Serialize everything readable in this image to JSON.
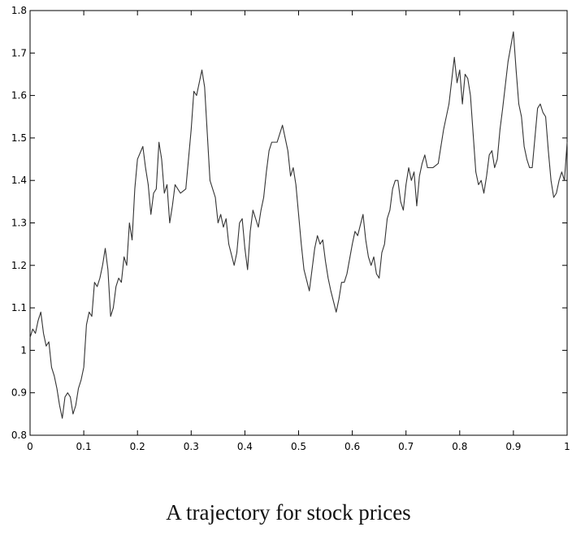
{
  "chart_data": {
    "type": "line",
    "caption": "A trajectory for stock prices",
    "x": [
      0,
      0.005,
      0.01,
      0.015,
      0.02,
      0.025,
      0.03,
      0.035,
      0.04,
      0.045,
      0.05,
      0.055,
      0.06,
      0.065,
      0.07,
      0.075,
      0.08,
      0.085,
      0.09,
      0.095,
      0.1,
      0.105,
      0.11,
      0.115,
      0.12,
      0.125,
      0.13,
      0.135,
      0.14,
      0.145,
      0.15,
      0.155,
      0.16,
      0.165,
      0.17,
      0.175,
      0.18,
      0.185,
      0.19,
      0.195,
      0.2,
      0.21,
      0.215,
      0.22,
      0.225,
      0.23,
      0.235,
      0.24,
      0.245,
      0.25,
      0.255,
      0.26,
      0.265,
      0.27,
      0.28,
      0.29,
      0.295,
      0.3,
      0.305,
      0.31,
      0.32,
      0.325,
      0.33,
      0.335,
      0.345,
      0.35,
      0.355,
      0.36,
      0.365,
      0.37,
      0.38,
      0.385,
      0.39,
      0.395,
      0.4,
      0.405,
      0.41,
      0.415,
      0.42,
      0.425,
      0.43,
      0.435,
      0.44,
      0.445,
      0.45,
      0.46,
      0.47,
      0.475,
      0.48,
      0.485,
      0.49,
      0.495,
      0.5,
      0.505,
      0.51,
      0.52,
      0.525,
      0.53,
      0.535,
      0.54,
      0.545,
      0.55,
      0.555,
      0.56,
      0.57,
      0.575,
      0.58,
      0.585,
      0.59,
      0.6,
      0.605,
      0.61,
      0.62,
      0.625,
      0.63,
      0.635,
      0.64,
      0.645,
      0.65,
      0.655,
      0.66,
      0.665,
      0.67,
      0.675,
      0.68,
      0.685,
      0.69,
      0.695,
      0.7,
      0.705,
      0.71,
      0.715,
      0.72,
      0.725,
      0.73,
      0.735,
      0.74,
      0.75,
      0.76,
      0.765,
      0.77,
      0.78,
      0.79,
      0.795,
      0.8,
      0.805,
      0.81,
      0.815,
      0.82,
      0.825,
      0.83,
      0.835,
      0.84,
      0.845,
      0.85,
      0.855,
      0.86,
      0.865,
      0.87,
      0.875,
      0.88,
      0.89,
      0.9,
      0.905,
      0.91,
      0.915,
      0.92,
      0.925,
      0.93,
      0.935,
      0.94,
      0.945,
      0.95,
      0.955,
      0.96,
      0.965,
      0.97,
      0.975,
      0.98,
      0.985,
      0.99,
      0.995,
      1
    ],
    "values": [
      1.03,
      1.05,
      1.04,
      1.07,
      1.09,
      1.04,
      1.01,
      1.02,
      0.96,
      0.94,
      0.91,
      0.87,
      0.84,
      0.89,
      0.9,
      0.89,
      0.85,
      0.87,
      0.91,
      0.93,
      0.96,
      1.06,
      1.09,
      1.08,
      1.16,
      1.15,
      1.17,
      1.2,
      1.24,
      1.19,
      1.08,
      1.1,
      1.15,
      1.17,
      1.16,
      1.22,
      1.2,
      1.3,
      1.26,
      1.38,
      1.45,
      1.48,
      1.43,
      1.39,
      1.32,
      1.37,
      1.38,
      1.49,
      1.45,
      1.37,
      1.39,
      1.3,
      1.34,
      1.39,
      1.37,
      1.38,
      1.45,
      1.52,
      1.61,
      1.6,
      1.66,
      1.62,
      1.51,
      1.4,
      1.36,
      1.3,
      1.32,
      1.29,
      1.31,
      1.25,
      1.2,
      1.23,
      1.3,
      1.31,
      1.24,
      1.19,
      1.28,
      1.33,
      1.31,
      1.29,
      1.33,
      1.36,
      1.42,
      1.47,
      1.49,
      1.49,
      1.53,
      1.5,
      1.47,
      1.41,
      1.43,
      1.39,
      1.32,
      1.25,
      1.19,
      1.14,
      1.19,
      1.24,
      1.27,
      1.25,
      1.26,
      1.21,
      1.17,
      1.14,
      1.09,
      1.12,
      1.16,
      1.16,
      1.18,
      1.25,
      1.28,
      1.27,
      1.32,
      1.26,
      1.22,
      1.2,
      1.22,
      1.18,
      1.17,
      1.23,
      1.25,
      1.31,
      1.33,
      1.38,
      1.4,
      1.4,
      1.35,
      1.33,
      1.39,
      1.43,
      1.4,
      1.42,
      1.34,
      1.41,
      1.44,
      1.46,
      1.43,
      1.43,
      1.44,
      1.48,
      1.52,
      1.58,
      1.69,
      1.63,
      1.66,
      1.58,
      1.65,
      1.64,
      1.6,
      1.51,
      1.42,
      1.39,
      1.4,
      1.37,
      1.41,
      1.46,
      1.47,
      1.43,
      1.45,
      1.52,
      1.57,
      1.68,
      1.75,
      1.66,
      1.58,
      1.55,
      1.48,
      1.45,
      1.43,
      1.43,
      1.5,
      1.57,
      1.58,
      1.56,
      1.55,
      1.47,
      1.4,
      1.36,
      1.37,
      1.4,
      1.42,
      1.4,
      1.49
    ],
    "color": "#333333",
    "xlim": [
      0,
      1
    ],
    "xticks": [
      0,
      0.1,
      0.2,
      0.3,
      0.4,
      0.5,
      0.6,
      0.7,
      0.8,
      0.9,
      1
    ],
    "ylim": [
      0.8,
      1.8
    ],
    "yticks": [
      0.8,
      0.9,
      1,
      1.1,
      1.2,
      1.3,
      1.4,
      1.5,
      1.6,
      1.7,
      1.8
    ]
  }
}
